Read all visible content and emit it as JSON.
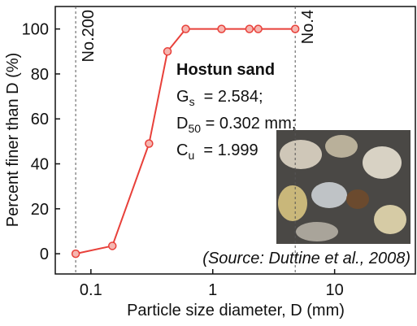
{
  "chart_data": {
    "type": "line",
    "x_label": "Particle size diameter, D (mm)",
    "y_label": "Percent finer than D (%)",
    "x_scale": "log",
    "series": [
      {
        "name": "Hostun sand",
        "color": "#e8403a",
        "x": [
          0.075,
          0.15,
          0.3,
          0.425,
          0.6,
          1.18,
          2,
          2.36,
          4.75
        ],
        "values": [
          0,
          3.5,
          49,
          90,
          100,
          100,
          100,
          100,
          100
        ]
      }
    ],
    "xlim": [
      0.051,
      46
    ],
    "xticks": [
      0.1,
      1,
      10
    ],
    "ylim": [
      -9,
      110
    ],
    "yticks": [
      0,
      20,
      40,
      60,
      80,
      100
    ],
    "reference_lines": [
      {
        "x": 0.075,
        "label": "No.200"
      },
      {
        "x": 4.75,
        "label": "No.4"
      }
    ],
    "annotation": {
      "title": "Hostun sand",
      "lines": [
        {
          "symbol": "G",
          "sub": "s",
          "rest": "  = 2.584;"
        },
        {
          "symbol": "D",
          "sub": "50",
          "rest": " = 0.302 mm;"
        },
        {
          "symbol": "C",
          "sub": "u",
          "rest": "  = 1.999"
        }
      ]
    },
    "source": "(Source: Duttine et al., 2008)"
  }
}
